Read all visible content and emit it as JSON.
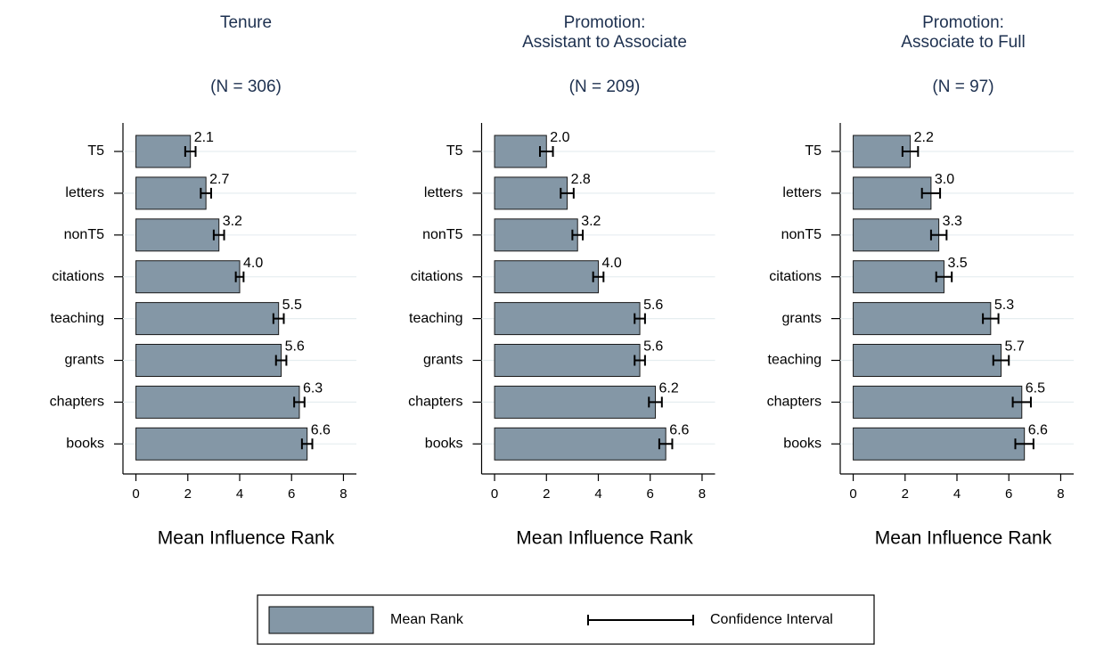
{
  "chart_data": [
    {
      "type": "bar",
      "title": [
        "Tenure"
      ],
      "subtitle": "(N = 306)",
      "categories": [
        "T5",
        "letters",
        "nonT5",
        "citations",
        "teaching",
        "grants",
        "chapters",
        "books"
      ],
      "values": [
        2.1,
        2.7,
        3.2,
        4.0,
        5.5,
        5.6,
        6.3,
        6.6
      ],
      "value_labels": [
        "2.1",
        "2.7",
        "3.2",
        "4.0",
        "5.5",
        "5.6",
        "6.3",
        "6.6"
      ],
      "errors": [
        0.2,
        0.2,
        0.2,
        0.15,
        0.2,
        0.2,
        0.2,
        0.2
      ],
      "color": "#8497a6",
      "xlabel": "Mean Influence Rank",
      "xlim": [
        -0.5,
        8.5
      ],
      "xticks": [
        0,
        2,
        4,
        6,
        8
      ],
      "grid": true
    },
    {
      "type": "bar",
      "title": [
        "Promotion:",
        "Assistant to Associate"
      ],
      "subtitle": "(N = 209)",
      "categories": [
        "T5",
        "letters",
        "nonT5",
        "citations",
        "teaching",
        "grants",
        "chapters",
        "books"
      ],
      "values": [
        2.0,
        2.8,
        3.2,
        4.0,
        5.6,
        5.6,
        6.2,
        6.6
      ],
      "value_labels": [
        "2.0",
        "2.8",
        "3.2",
        "4.0",
        "5.6",
        "5.6",
        "6.2",
        "6.6"
      ],
      "errors": [
        0.25,
        0.25,
        0.2,
        0.2,
        0.2,
        0.2,
        0.25,
        0.25
      ],
      "color": "#8497a6",
      "xlabel": "Mean Influence Rank",
      "xlim": [
        -0.5,
        8.5
      ],
      "xticks": [
        0,
        2,
        4,
        6,
        8
      ],
      "grid": true
    },
    {
      "type": "bar",
      "title": [
        "Promotion:",
        "Associate to Full"
      ],
      "subtitle": "(N = 97)",
      "categories": [
        "T5",
        "letters",
        "nonT5",
        "citations",
        "grants",
        "teaching",
        "chapters",
        "books"
      ],
      "values": [
        2.2,
        3.0,
        3.3,
        3.5,
        5.3,
        5.7,
        6.5,
        6.6
      ],
      "value_labels": [
        "2.2",
        "3.0",
        "3.3",
        "3.5",
        "5.3",
        "5.7",
        "6.5",
        "6.6"
      ],
      "errors": [
        0.3,
        0.35,
        0.3,
        0.3,
        0.3,
        0.3,
        0.35,
        0.35
      ],
      "color": "#8497a6",
      "xlabel": "Mean Influence Rank",
      "xlim": [
        -0.5,
        8.5
      ],
      "xticks": [
        0,
        2,
        4,
        6,
        8
      ],
      "grid": true
    }
  ],
  "legend": {
    "bar": "Mean Rank",
    "error": "Confidence Interval"
  }
}
